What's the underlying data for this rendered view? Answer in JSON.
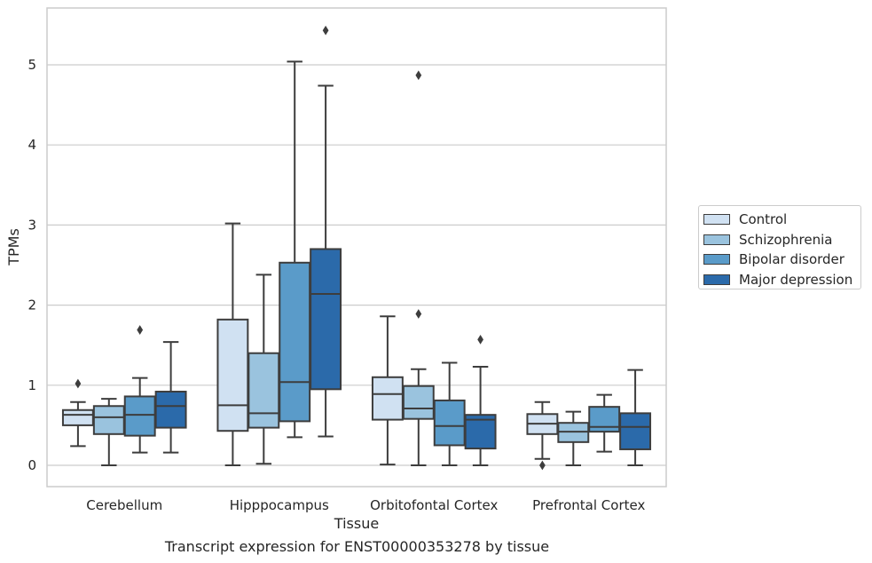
{
  "chart_data": {
    "type": "box",
    "title": "",
    "xlabel": "Tissue",
    "ylabel": "TPMs",
    "ylim": [
      -0.25,
      5.7
    ],
    "yticks": [
      0,
      1,
      2,
      3,
      4,
      5
    ],
    "grid": "horizontal",
    "legend_position": "outside-right",
    "categories": [
      "Cerebellum",
      "Hipppocampus",
      "Orbitofontal Cortex",
      "Prefrontal Cortex"
    ],
    "series": [
      {
        "name": "Control",
        "color": "#d0e1f2",
        "boxes": [
          {
            "whisker_low": 0.24,
            "q1": 0.5,
            "median": 0.63,
            "q3": 0.69,
            "whisker_high": 0.79,
            "outliers": [
              1.02
            ]
          },
          {
            "whisker_low": 0.0,
            "q1": 0.43,
            "median": 0.75,
            "q3": 1.82,
            "whisker_high": 3.02,
            "outliers": []
          },
          {
            "whisker_low": 0.01,
            "q1": 0.57,
            "median": 0.89,
            "q3": 1.1,
            "whisker_high": 1.86,
            "outliers": []
          },
          {
            "whisker_low": 0.08,
            "q1": 0.39,
            "median": 0.52,
            "q3": 0.64,
            "whisker_high": 0.79,
            "outliers": [
              0.0
            ]
          }
        ]
      },
      {
        "name": "Schizophrenia",
        "color": "#9ac3de",
        "boxes": [
          {
            "whisker_low": 0.0,
            "q1": 0.39,
            "median": 0.6,
            "q3": 0.74,
            "whisker_high": 0.83,
            "outliers": []
          },
          {
            "whisker_low": 0.02,
            "q1": 0.47,
            "median": 0.65,
            "q3": 1.4,
            "whisker_high": 2.38,
            "outliers": []
          },
          {
            "whisker_low": 0.0,
            "q1": 0.58,
            "median": 0.71,
            "q3": 0.99,
            "whisker_high": 1.2,
            "outliers": [
              1.89,
              4.87
            ]
          },
          {
            "whisker_low": 0.0,
            "q1": 0.29,
            "median": 0.42,
            "q3": 0.53,
            "whisker_high": 0.67,
            "outliers": []
          }
        ]
      },
      {
        "name": "Bipolar disorder",
        "color": "#5a9bc9",
        "boxes": [
          {
            "whisker_low": 0.16,
            "q1": 0.37,
            "median": 0.63,
            "q3": 0.86,
            "whisker_high": 1.09,
            "outliers": [
              1.69
            ]
          },
          {
            "whisker_low": 0.35,
            "q1": 0.55,
            "median": 1.04,
            "q3": 2.53,
            "whisker_high": 5.04,
            "outliers": []
          },
          {
            "whisker_low": 0.0,
            "q1": 0.25,
            "median": 0.49,
            "q3": 0.81,
            "whisker_high": 1.28,
            "outliers": []
          },
          {
            "whisker_low": 0.17,
            "q1": 0.42,
            "median": 0.48,
            "q3": 0.73,
            "whisker_high": 0.88,
            "outliers": []
          }
        ]
      },
      {
        "name": "Major depression",
        "color": "#2b6aaa",
        "boxes": [
          {
            "whisker_low": 0.16,
            "q1": 0.47,
            "median": 0.74,
            "q3": 0.92,
            "whisker_high": 1.54,
            "outliers": []
          },
          {
            "whisker_low": 0.36,
            "q1": 0.95,
            "median": 2.14,
            "q3": 2.7,
            "whisker_high": 4.74,
            "outliers": [
              5.43
            ]
          },
          {
            "whisker_low": 0.0,
            "q1": 0.21,
            "median": 0.57,
            "q3": 0.63,
            "whisker_high": 1.23,
            "outliers": [
              1.57
            ]
          },
          {
            "whisker_low": 0.0,
            "q1": 0.2,
            "median": 0.48,
            "q3": 0.65,
            "whisker_high": 1.19,
            "outliers": []
          }
        ]
      }
    ]
  },
  "caption": "Transcript expression for ENST00000353278 by tissue"
}
